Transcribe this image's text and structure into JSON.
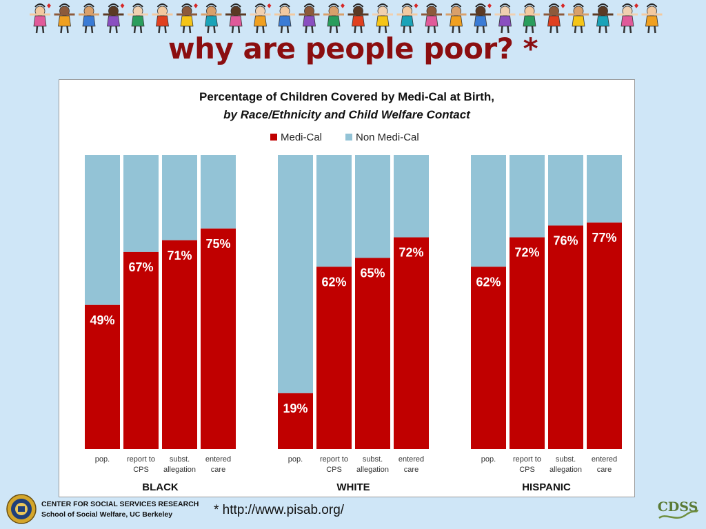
{
  "slide": {
    "title": "why are people poor? *",
    "footnote": "* http://www.pisab.org/",
    "org_line1": "CENTER FOR SOCIAL SERVICES RESEARCH",
    "org_line2": "School of Social Welfare, UC Berkeley",
    "logo_text": "CDSS"
  },
  "chart_data": {
    "type": "bar",
    "stacked": true,
    "title": "Percentage of Children Covered by Medi-Cal at Birth,",
    "subtitle": "by Race/Ethnicity and Child Welfare Contact",
    "legend_position": "top-center",
    "series": [
      {
        "name": "Medi-Cal",
        "color": "#c00000"
      },
      {
        "name": "Non Medi-Cal",
        "color": "#93c3d6"
      }
    ],
    "categories": [
      [
        "pop."
      ],
      [
        "report to",
        "CPS"
      ],
      [
        "subst.",
        "allegation"
      ],
      [
        "entered",
        "care"
      ]
    ],
    "groups": [
      {
        "name": "BLACK",
        "values": [
          49,
          67,
          71,
          75
        ]
      },
      {
        "name": "WHITE",
        "values": [
          19,
          62,
          65,
          72
        ]
      },
      {
        "name": "HISPANIC",
        "values": [
          62,
          72,
          76,
          77
        ]
      }
    ],
    "ylim": [
      0,
      100
    ],
    "value_suffix": "%",
    "grid": false
  },
  "colors": {
    "background": "#cfe6f7",
    "title": "#8b0e10",
    "medi_cal": "#c00000",
    "non_medi_cal": "#93c3d6"
  }
}
